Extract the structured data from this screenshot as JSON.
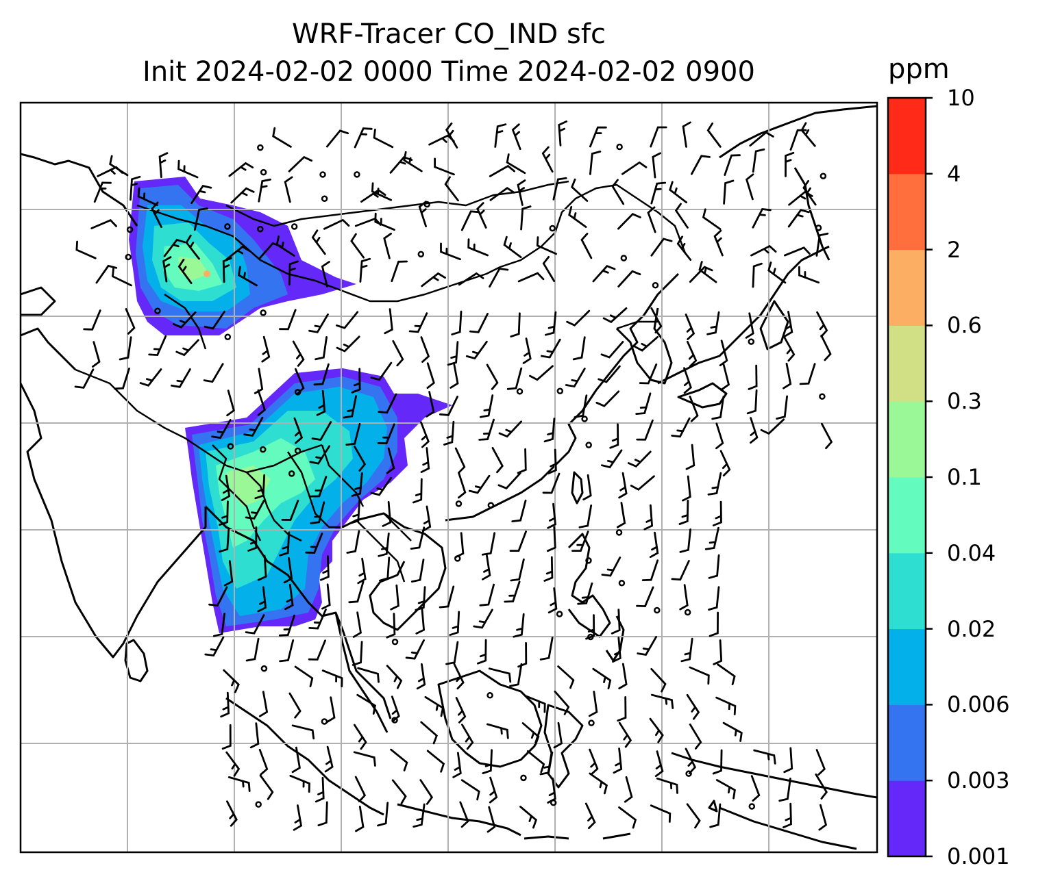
{
  "title": {
    "line1": "WRF-Tracer CO_IND sfc",
    "line2": "Init 2024-02-02 0000 Time 2024-02-02 0900"
  },
  "colorbar": {
    "units": "ppm",
    "levels": [
      "0.001",
      "0.003",
      "0.006",
      "0.02",
      "0.04",
      "0.1",
      "0.3",
      "0.6",
      "2",
      "4",
      "10"
    ],
    "colors": [
      "#6428f8",
      "#3574f0",
      "#04b0ea",
      "#2edfd1",
      "#64fbbe",
      "#9af996",
      "#d1e085",
      "#fcaf62",
      "#ff6e3c",
      "#ff2a18"
    ]
  },
  "map": {
    "background": "#ffffff",
    "gridline_color": "#b0b0b0",
    "coastline_color": "#000000",
    "fields": [
      "tracer concentration contours",
      "wind barbs",
      "coastlines",
      "country borders"
    ]
  }
}
